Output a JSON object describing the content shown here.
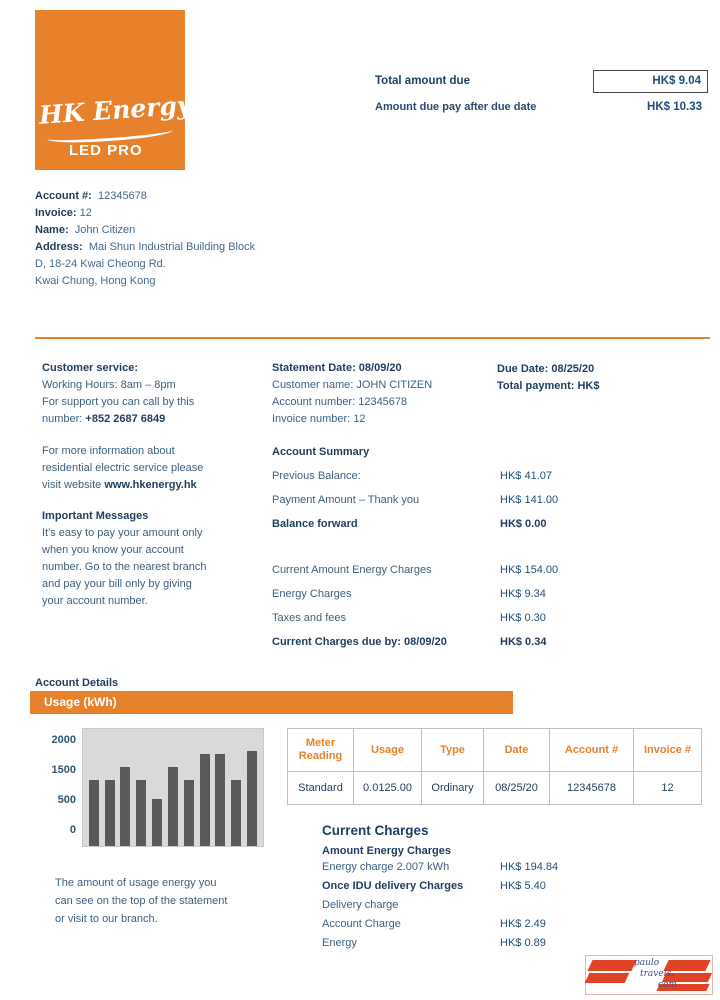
{
  "logo": {
    "brand_script": "HK Energy",
    "brand_sub": "LED PRO"
  },
  "amount_due": {
    "label": "Total amount due",
    "value": "HK$ 9.04",
    "after_label": "Amount due pay after due date",
    "after_value": "HK$ 10.33"
  },
  "account_info": {
    "account_label": "Account #:",
    "account_value": "12345678",
    "invoice_label": "Invoice:",
    "invoice_value": "12",
    "name_label": "Name:",
    "name_value": "John Citizen",
    "address_label": "Address:",
    "address_value": "Mai Shun Industrial Building Block",
    "address_line2": "D, 18-24 Kwai Cheong Rd.",
    "address_line3": "Kwai Chung, Hong Kong"
  },
  "customer_service": {
    "title": "Customer service:",
    "line1": "Working Hours: 8am – 8pm",
    "line2": "For support you can call by this",
    "line3_prefix": "number: ",
    "phone": "+852 2687 6849",
    "info1": "For more information about",
    "info2": "residential electric service please",
    "info3_prefix": "visit website ",
    "website": "www.hkenergy.hk",
    "important_title": "Important Messages",
    "important_lines": [
      "It's easy to pay your amount only",
      "when you know your account",
      "number. Go to the nearest branch",
      "and pay your bill only by giving",
      "your account number."
    ]
  },
  "statement": {
    "statement_date": "Statement Date: 08/09/20",
    "customer_name": "Customer name: JOHN CITIZEN",
    "account_number": "Account number: 12345678",
    "invoice_number": "Invoice number: 12",
    "due_date": "Due Date: 08/25/20",
    "total_payment": "Total payment: HK$"
  },
  "account_summary": {
    "title": "Account Summary",
    "rows": [
      {
        "label": "Previous Balance:",
        "value": "HK$ 41.07"
      },
      {
        "label": "Payment Amount – Thank you",
        "value": "HK$ 141.00"
      },
      {
        "label": "Balance forward",
        "value": "HK$ 0.00"
      },
      {
        "label": "Current Amount Energy Charges",
        "value": "HK$ 154.00"
      },
      {
        "label": "Energy Charges",
        "value": "HK$ 9.34"
      },
      {
        "label": "Taxes and fees",
        "value": "HK$ 0.30"
      },
      {
        "label": "Current Charges due by: 08/09/20",
        "value": "HK$ 0.34"
      }
    ]
  },
  "account_details": {
    "title": "Account Details",
    "usage_header": "Usage (kWh)"
  },
  "chart_data": {
    "type": "bar",
    "title": "Usage (kWh)",
    "y_ticks": [
      "2000",
      "1500",
      "500",
      "0"
    ],
    "values": [
      1250,
      1250,
      1500,
      1250,
      900,
      1500,
      1250,
      1750,
      1750,
      1250,
      1800
    ],
    "ylim": [
      0,
      2000
    ],
    "xlabel": "",
    "ylabel": "",
    "grid": false,
    "legend": "none",
    "bar_color": "#595959",
    "plot_bg": "#D9D9D9"
  },
  "chart_caption": {
    "line1": "The amount of usage energy you",
    "line2": "can see on the top of the statement",
    "line3": "or visit to our branch."
  },
  "usage_table": {
    "headers": [
      "Meter Reading",
      "Usage",
      "Type",
      "Date",
      "Account #",
      "Invoice #"
    ],
    "rows": [
      [
        "Standard",
        "0.0125.00",
        "Ordinary",
        "08/25/20",
        "12345678",
        "12"
      ]
    ]
  },
  "current_charges": {
    "title": "Current Charges",
    "subtitle": "Amount Energy Charges",
    "rows": [
      {
        "label": "Energy charge 2.007 kWh",
        "value": "HK$ 194.84"
      },
      {
        "label": "Once IDU delivery Charges",
        "value": "HK$ 5.40"
      },
      {
        "label": "Delivery charge",
        "value": ""
      },
      {
        "label": "Account Charge",
        "value": "HK$ 2.49"
      },
      {
        "label": "Energy",
        "value": "HK$ 0.89"
      }
    ]
  },
  "watermark": {
    "line1": "paulo",
    "line2": "travels.",
    "line3": "com"
  },
  "colors": {
    "accent_orange": "#E8812C",
    "navy_bold": "#1F3C5F",
    "body_blue": "#3D6080",
    "value_blue": "#1F4E79",
    "chart_bar": "#595959",
    "chart_bg": "#D9D9D9",
    "watermark_red": "#E04326"
  }
}
